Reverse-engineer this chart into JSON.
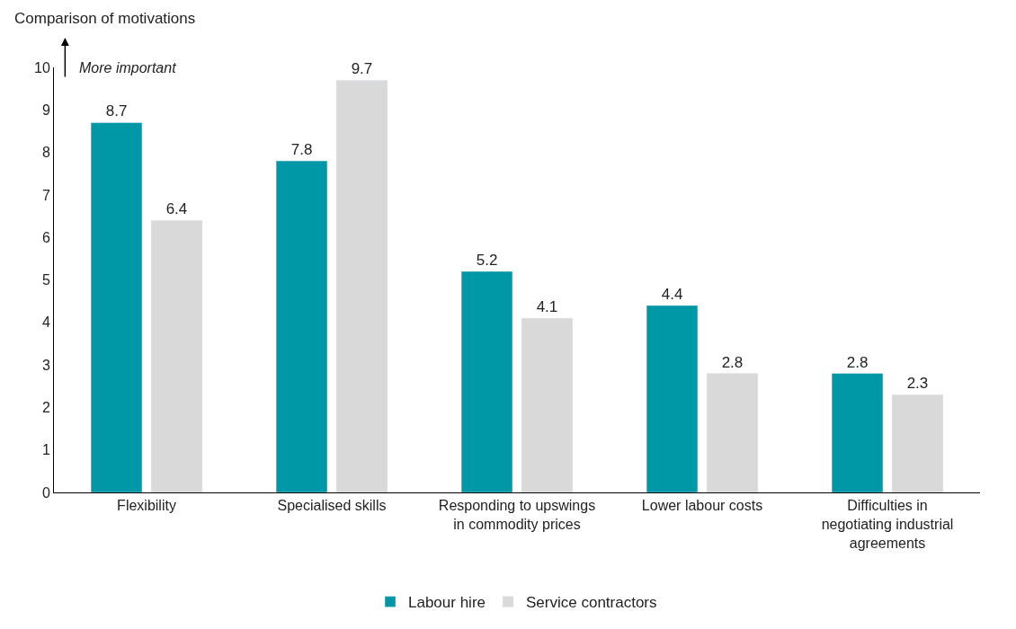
{
  "chart_data": {
    "type": "bar",
    "ylabel": "Comparison of motivations",
    "annotations": [
      "More important"
    ],
    "categories": [
      "Flexibility",
      "Specialised skills",
      "Responding to upswings in commodity prices",
      "Lower labour costs",
      "Difficulties in negotiating industrial agreements"
    ],
    "series": [
      {
        "name": "Labour hire",
        "color": "#0097a7",
        "values": [
          8.7,
          7.8,
          5.2,
          4.4,
          2.8
        ]
      },
      {
        "name": "Service contractors",
        "color": "#d9d9d9",
        "values": [
          6.4,
          9.7,
          4.1,
          2.8,
          2.3
        ]
      }
    ],
    "ylim": [
      0,
      10
    ],
    "yticks": [
      0,
      1,
      2,
      3,
      4,
      5,
      6,
      7,
      8,
      9,
      10
    ],
    "legend": "bottom",
    "data_labels": true
  }
}
